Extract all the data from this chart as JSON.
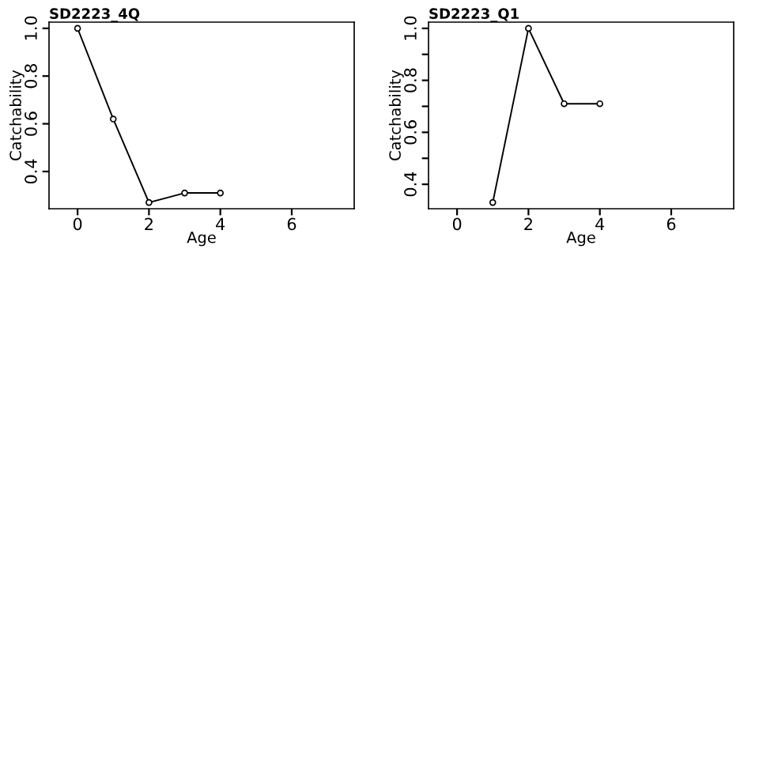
{
  "chart_data": [
    {
      "type": "line",
      "title": "SD2223_4Q",
      "xlabel": "Age",
      "ylabel": "Catchability",
      "x": [
        0,
        1,
        2,
        3,
        4
      ],
      "series": [
        {
          "color": "#000000",
          "values": [
            1.0,
            0.62,
            0.27,
            0.31,
            0.31
          ]
        }
      ],
      "xlim": [
        -0.8,
        7.75
      ],
      "xticks": [
        0,
        2,
        4,
        6
      ],
      "ylim": [
        0.244,
        1.026
      ],
      "yticks": [
        0.4,
        0.6,
        0.8,
        {
          "value": 1.0,
          "label": "1.0"
        }
      ],
      "marker": "circle",
      "line_style": "solid",
      "grid": false
    },
    {
      "type": "line",
      "title": "SD2223_Q1",
      "xlabel": "Age",
      "ylabel": "Catchability",
      "series": [
        {
          "color": "#000000",
          "x": [
            1,
            2,
            3,
            4
          ],
          "values": [
            0.33,
            1.0,
            0.71,
            0.71
          ]
        }
      ],
      "xlim": [
        -0.8,
        7.75
      ],
      "xticks": [
        0,
        2,
        4,
        6
      ],
      "ylim": [
        0.306,
        1.024
      ],
      "yticks": [
        0.4,
        {
          "value": 0.5,
          "label": null
        },
        0.6,
        {
          "value": 0.7,
          "label": null
        },
        0.8,
        {
          "value": 0.9,
          "label": null
        },
        {
          "value": 1.0,
          "label": "1.0"
        }
      ],
      "marker": "circle",
      "line_style": "solid",
      "grid": false
    }
  ]
}
